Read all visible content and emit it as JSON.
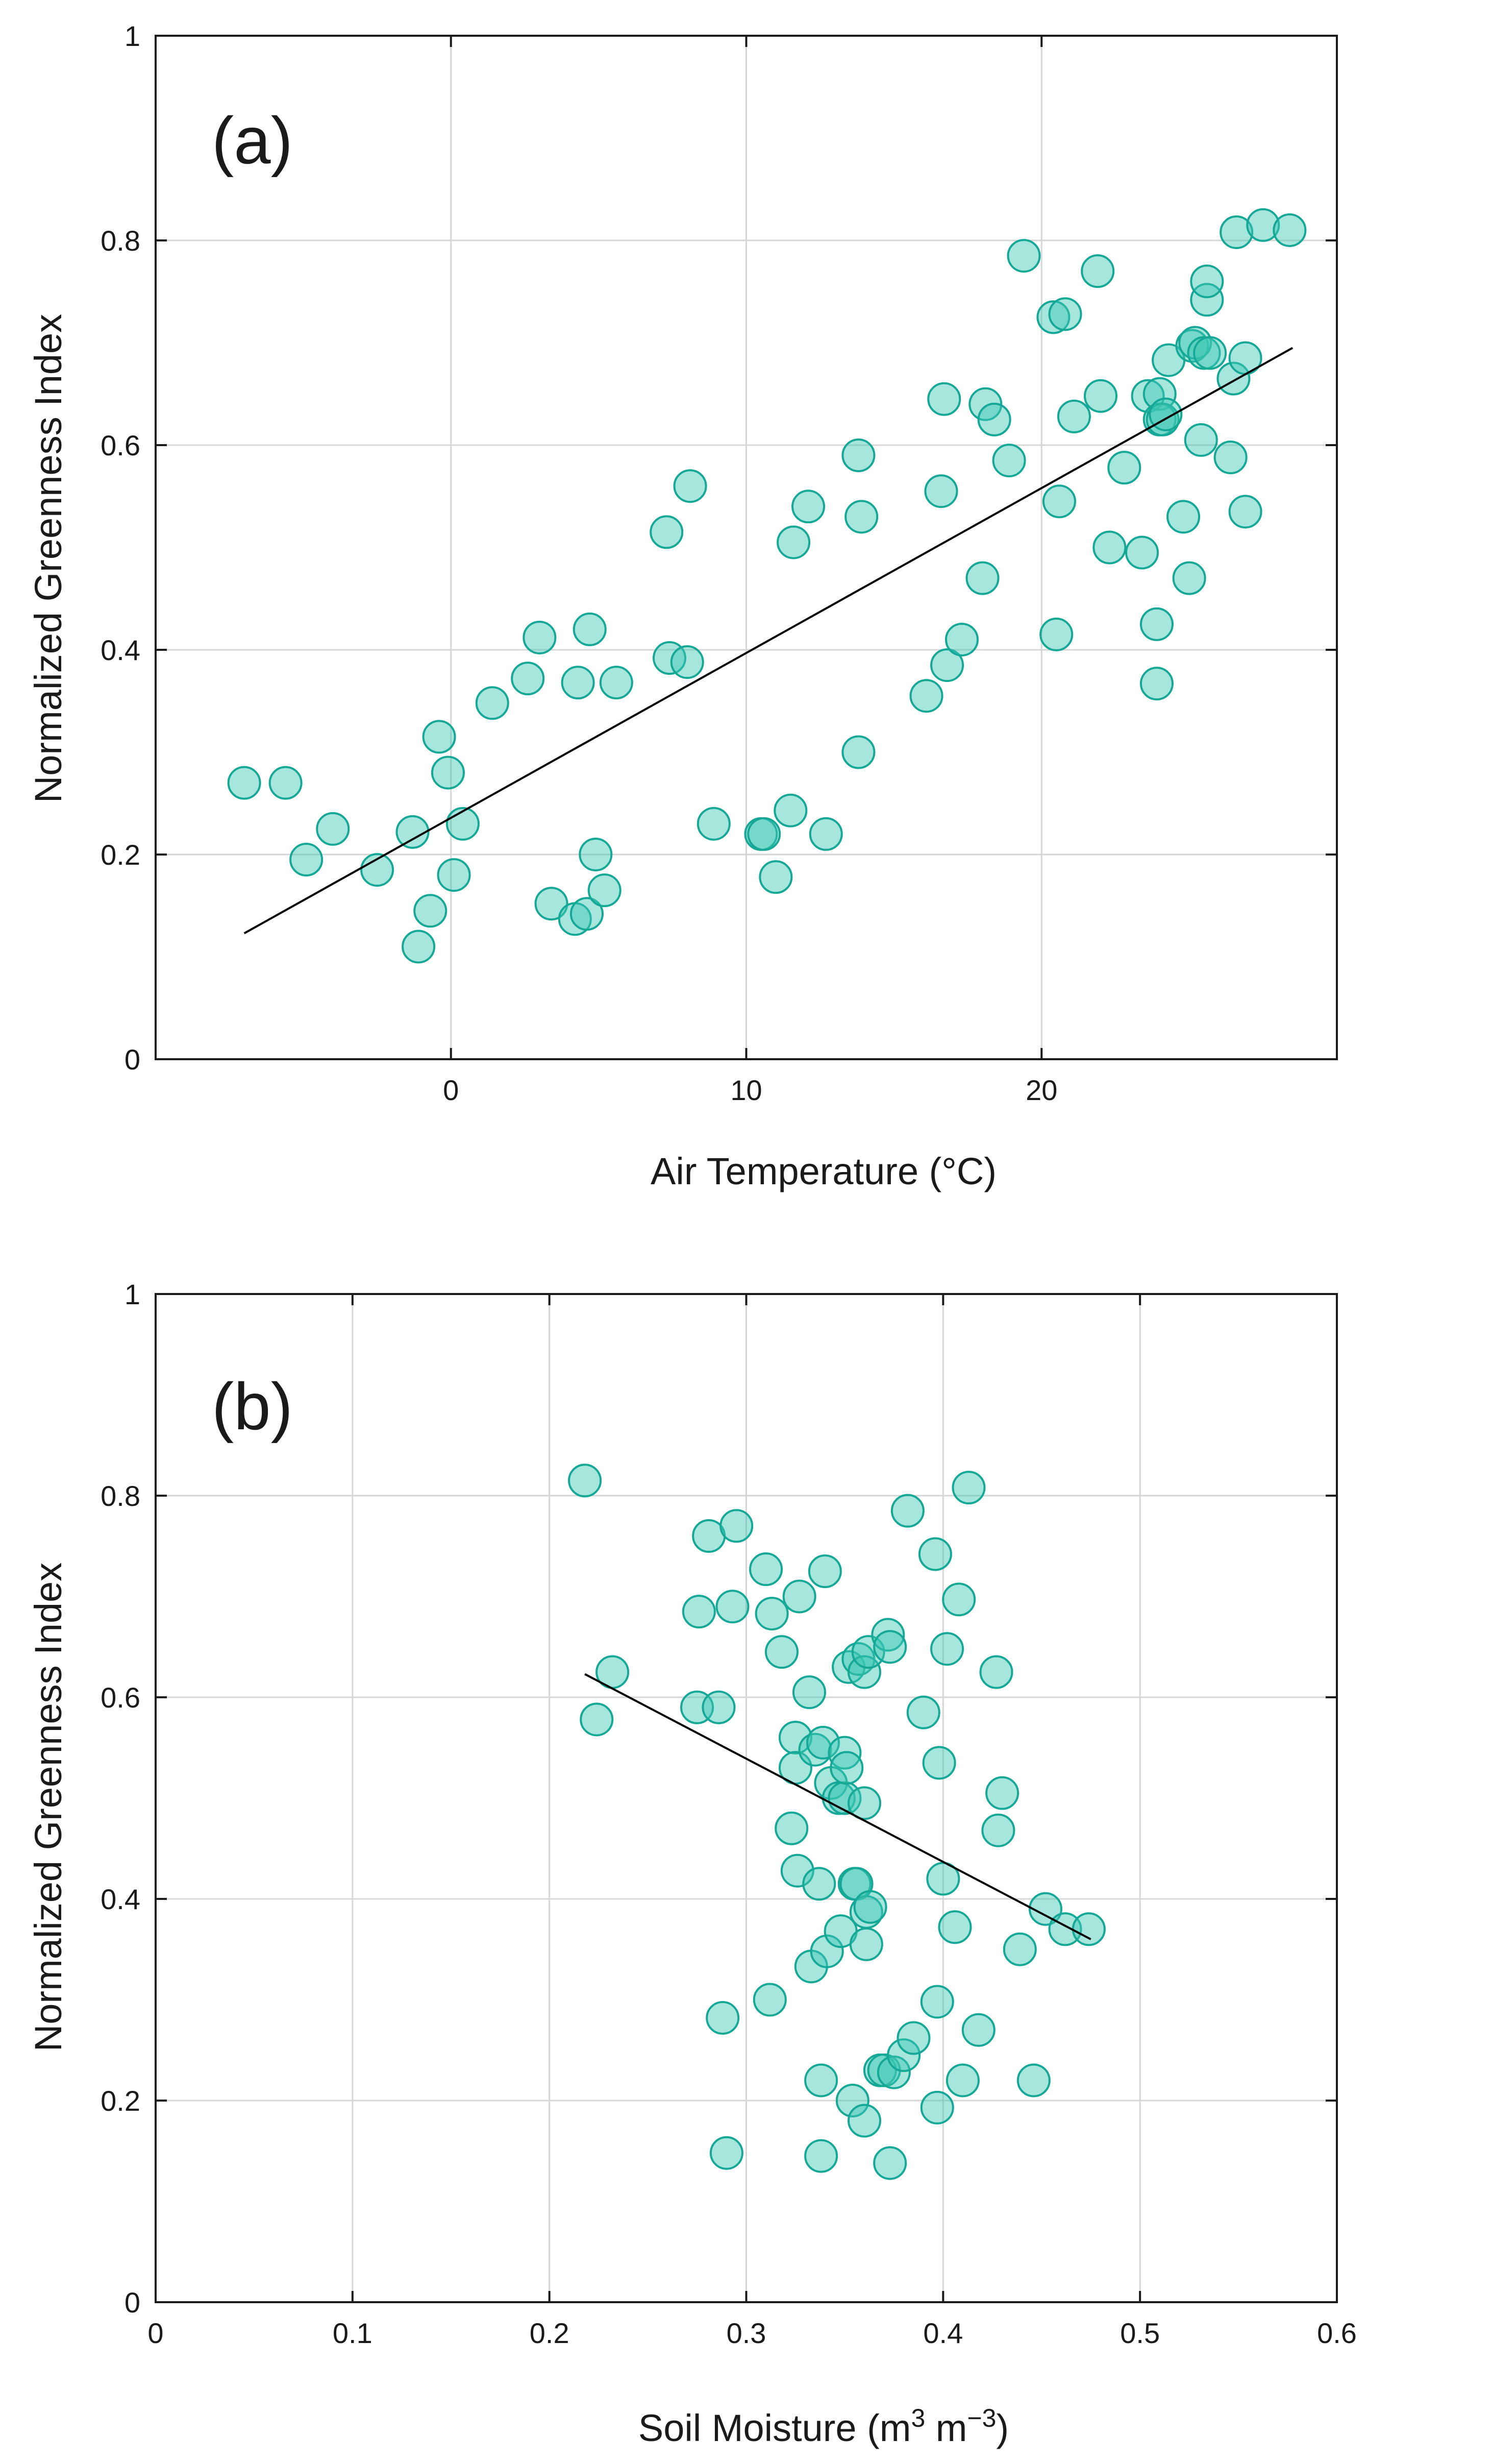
{
  "colors": {
    "marker_fill": "#3cc8b4",
    "marker_stroke": "#16a896",
    "fit_line": "#000000",
    "grid": "#d6d6d6",
    "axis": "#1a1a1a"
  },
  "chart_data": [
    {
      "type": "scatter",
      "panel_label": "(a)",
      "title": "",
      "xlabel": "Air Temperature (°C)",
      "ylabel": "Normalized Greenness Index",
      "xlim": [
        -10,
        30
      ],
      "ylim": [
        0,
        1
      ],
      "xticks": [
        0,
        10,
        20
      ],
      "xtick_labels": [
        "0",
        "10",
        "20"
      ],
      "yticks": [
        0,
        0.2,
        0.4,
        0.6,
        0.8,
        1
      ],
      "ytick_labels": [
        "0",
        "0.2",
        "0.4",
        "0.6",
        "0.8",
        "1"
      ],
      "grid": true,
      "fit_line": {
        "x": [
          -7,
          28.5
        ],
        "y": [
          0.123,
          0.695
        ]
      },
      "x": [
        -7.0,
        -5.6,
        -4.9,
        -4.0,
        -2.5,
        -1.3,
        -1.1,
        -0.7,
        -0.4,
        -0.1,
        0.1,
        0.4,
        1.4,
        2.6,
        3.0,
        3.4,
        4.2,
        4.3,
        4.6,
        4.7,
        4.9,
        5.2,
        5.6,
        7.3,
        7.4,
        8.0,
        8.1,
        8.9,
        10.5,
        10.6,
        11.0,
        11.5,
        11.6,
        12.1,
        12.7,
        13.8,
        13.8,
        13.9,
        16.1,
        16.6,
        16.7,
        16.8,
        17.3,
        18.0,
        18.1,
        18.4,
        18.9,
        19.4,
        20.4,
        20.5,
        20.6,
        20.8,
        21.1,
        21.9,
        22.0,
        22.3,
        22.8,
        23.4,
        23.6,
        23.9,
        23.9,
        24.0,
        24.0,
        24.1,
        24.2,
        24.3,
        24.8,
        25.0,
        25.1,
        25.2,
        25.4,
        25.5,
        25.6,
        25.6,
        25.7,
        26.4,
        26.5,
        26.6,
        26.9,
        26.9,
        27.5,
        28.4
      ],
      "y": [
        0.27,
        0.27,
        0.195,
        0.225,
        0.185,
        0.222,
        0.11,
        0.145,
        0.315,
        0.28,
        0.18,
        0.23,
        0.348,
        0.372,
        0.412,
        0.152,
        0.137,
        0.368,
        0.142,
        0.42,
        0.2,
        0.165,
        0.368,
        0.515,
        0.392,
        0.388,
        0.56,
        0.23,
        0.22,
        0.22,
        0.178,
        0.243,
        0.505,
        0.54,
        0.22,
        0.59,
        0.3,
        0.53,
        0.355,
        0.555,
        0.645,
        0.385,
        0.41,
        0.47,
        0.64,
        0.625,
        0.585,
        0.785,
        0.725,
        0.415,
        0.545,
        0.728,
        0.628,
        0.77,
        0.648,
        0.5,
        0.578,
        0.495,
        0.648,
        0.367,
        0.425,
        0.65,
        0.625,
        0.625,
        0.63,
        0.683,
        0.53,
        0.47,
        0.697,
        0.7,
        0.605,
        0.69,
        0.742,
        0.76,
        0.69,
        0.588,
        0.665,
        0.808,
        0.535,
        0.685,
        0.815,
        0.81
      ]
    },
    {
      "type": "scatter",
      "panel_label": "(b)",
      "title": "",
      "xlabel_main": "Soil Moisture (m",
      "xlabel_sup1": "3",
      "xlabel_mid": " m",
      "xlabel_sup2": "−3",
      "xlabel_end": ")",
      "ylabel": "Normalized Greenness Index",
      "xlim": [
        0,
        0.6
      ],
      "ylim": [
        0,
        1
      ],
      "xticks": [
        0,
        0.1,
        0.2,
        0.3,
        0.4,
        0.5,
        0.6
      ],
      "xtick_labels": [
        "0",
        "0.1",
        "0.2",
        "0.3",
        "0.4",
        "0.5",
        "0.6"
      ],
      "yticks": [
        0,
        0.2,
        0.4,
        0.6,
        0.8,
        1
      ],
      "ytick_labels": [
        "0",
        "0.2",
        "0.4",
        "0.6",
        "0.8",
        "1"
      ],
      "grid": true,
      "fit_line": {
        "x": [
          0.218,
          0.475
        ],
        "y": [
          0.623,
          0.36
        ]
      },
      "x": [
        0.218,
        0.224,
        0.232,
        0.275,
        0.276,
        0.281,
        0.286,
        0.288,
        0.29,
        0.293,
        0.295,
        0.31,
        0.312,
        0.313,
        0.318,
        0.323,
        0.325,
        0.325,
        0.326,
        0.327,
        0.332,
        0.333,
        0.335,
        0.337,
        0.338,
        0.338,
        0.339,
        0.34,
        0.341,
        0.343,
        0.347,
        0.348,
        0.35,
        0.35,
        0.351,
        0.352,
        0.354,
        0.355,
        0.356,
        0.357,
        0.36,
        0.36,
        0.36,
        0.361,
        0.361,
        0.362,
        0.363,
        0.368,
        0.37,
        0.372,
        0.373,
        0.373,
        0.375,
        0.38,
        0.382,
        0.385,
        0.39,
        0.396,
        0.397,
        0.397,
        0.398,
        0.4,
        0.402,
        0.406,
        0.408,
        0.41,
        0.413,
        0.418,
        0.427,
        0.428,
        0.43,
        0.439,
        0.446,
        0.452,
        0.462,
        0.474
      ],
      "y": [
        0.815,
        0.578,
        0.625,
        0.59,
        0.685,
        0.76,
        0.59,
        0.282,
        0.148,
        0.69,
        0.77,
        0.727,
        0.3,
        0.683,
        0.645,
        0.47,
        0.56,
        0.53,
        0.428,
        0.7,
        0.605,
        0.333,
        0.548,
        0.415,
        0.22,
        0.145,
        0.555,
        0.725,
        0.348,
        0.515,
        0.5,
        0.368,
        0.5,
        0.545,
        0.53,
        0.63,
        0.2,
        0.415,
        0.415,
        0.638,
        0.495,
        0.625,
        0.18,
        0.355,
        0.387,
        0.645,
        0.392,
        0.23,
        0.23,
        0.662,
        0.65,
        0.138,
        0.228,
        0.245,
        0.785,
        0.262,
        0.585,
        0.742,
        0.193,
        0.298,
        0.535,
        0.42,
        0.648,
        0.372,
        0.697,
        0.22,
        0.808,
        0.27,
        0.625,
        0.468,
        0.505,
        0.35,
        0.22,
        0.39,
        0.37,
        0.37
      ]
    }
  ]
}
